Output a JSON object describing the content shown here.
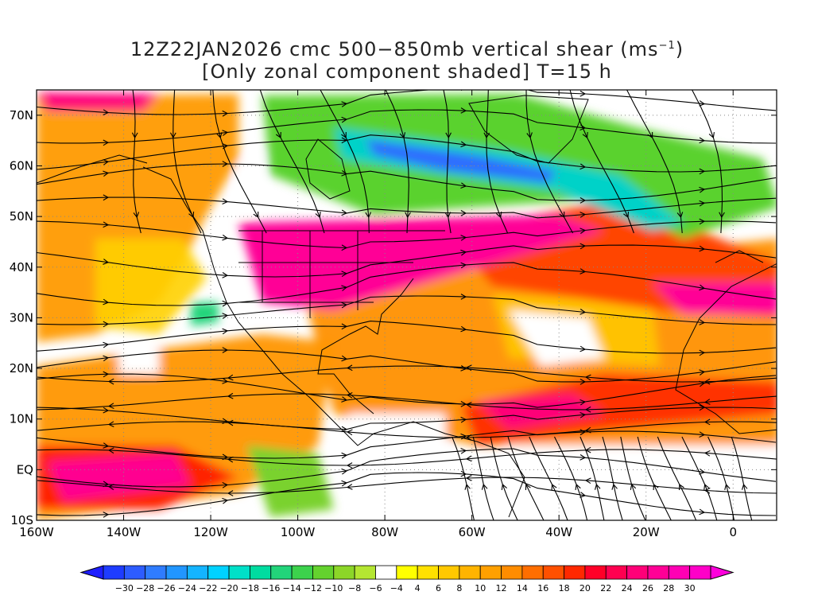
{
  "title": {
    "line1_prefix": "12Z22JAN2026 cmc 500−850mb vertical shear (ms",
    "line1_sup": "−1",
    "line1_suffix": ")",
    "line2": "[Only zonal component shaded] T=15 h"
  },
  "map": {
    "lon_range": [
      -160,
      10
    ],
    "lat_range": [
      -10,
      75
    ],
    "x_ticks": [
      {
        "lon": -160,
        "label": "160W"
      },
      {
        "lon": -140,
        "label": "140W"
      },
      {
        "lon": -120,
        "label": "120W"
      },
      {
        "lon": -100,
        "label": "100W"
      },
      {
        "lon": -80,
        "label": "80W"
      },
      {
        "lon": -60,
        "label": "60W"
      },
      {
        "lon": -40,
        "label": "40W"
      },
      {
        "lon": -20,
        "label": "20W"
      },
      {
        "lon": 0,
        "label": "0"
      }
    ],
    "y_ticks": [
      {
        "lat": 70,
        "label": "70N"
      },
      {
        "lat": 60,
        "label": "60N"
      },
      {
        "lat": 50,
        "label": "50N"
      },
      {
        "lat": 40,
        "label": "40N"
      },
      {
        "lat": 30,
        "label": "30N"
      },
      {
        "lat": 20,
        "label": "20N"
      },
      {
        "lat": 10,
        "label": "10N"
      },
      {
        "lat": 0,
        "label": "EQ"
      },
      {
        "lat": -10,
        "label": "10S"
      }
    ]
  },
  "colorbar": {
    "levels": [
      "−30",
      "−28",
      "−26",
      "−24",
      "−22",
      "−20",
      "−18",
      "−16",
      "−14",
      "−12",
      "−10",
      "−8",
      "−6",
      "−4",
      "4",
      "6",
      "8",
      "10",
      "12",
      "14",
      "16",
      "18",
      "20",
      "22",
      "24",
      "26",
      "28",
      "30"
    ],
    "colors": [
      "#1e3cff",
      "#2d5cff",
      "#2f7cff",
      "#2196ff",
      "#14b4ff",
      "#00d2ff",
      "#00e0c8",
      "#00dca0",
      "#22d47a",
      "#3cd24c",
      "#64d22e",
      "#8cd628",
      "#b4e632",
      "#ffffff",
      "#ffff00",
      "#ffe100",
      "#ffc800",
      "#ffb400",
      "#ffa000",
      "#ff8c00",
      "#ff6e00",
      "#ff5000",
      "#ff2800",
      "#ff0028",
      "#ff0050",
      "#ff0078",
      "#ff0096",
      "#ff00b4",
      "#ff00c8"
    ],
    "low_end_color": "#1e1eff",
    "high_end_color": "#ff00dc"
  },
  "field_colors": {
    "orange": "#ff9000",
    "red": "#ff3000",
    "magenta": "#ff0090",
    "yellow": "#ffc800",
    "green": "#64d22e",
    "cyan": "#00d2ff",
    "blue": "#2d5cff"
  }
}
